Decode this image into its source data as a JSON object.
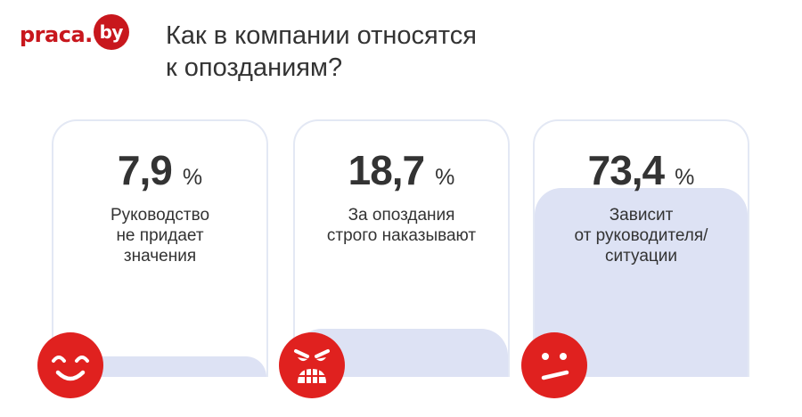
{
  "logo": {
    "name": "praca",
    "dot": ".",
    "badge": "by"
  },
  "title": "Как в компании относятся\nк опозданиям?",
  "chart_data": {
    "type": "bar",
    "title": "Как в компании относятся к опозданиям?",
    "unit": "%",
    "ylim": [
      0,
      100
    ],
    "categories": [
      "Руководство\nне придает\nзначения",
      "За опоздания\nстрого наказывают",
      "Зависит\nот руководителя/\nситуации"
    ],
    "values": [
      7.9,
      18.7,
      73.4
    ],
    "value_labels": [
      "7,9",
      "18,7",
      "73,4"
    ]
  },
  "emojis": [
    "smiling-face-icon",
    "angry-face-icon",
    "skeptical-face-icon"
  ],
  "colors": {
    "brand": "#c8171d",
    "fill": "#dde2f4",
    "border": "#e3e8f4",
    "text": "#333333"
  }
}
